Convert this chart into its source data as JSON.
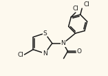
{
  "background_color": "#fdf9ee",
  "line_color": "#1a1a1a",
  "line_width": 1.1,
  "font_size": 6.5,
  "labels": {
    "S": "S",
    "N_thiazole": "N",
    "Cl_methyl": "Cl",
    "N_amide": "N",
    "O_carbonyl": "O",
    "Cl1": "Cl",
    "Cl2": "Cl"
  }
}
